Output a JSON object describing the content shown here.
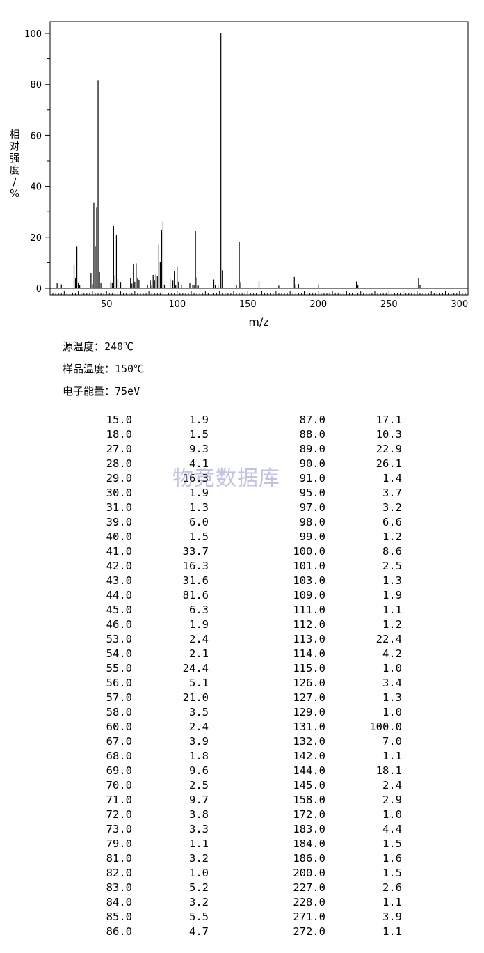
{
  "chart_data": {
    "type": "bar",
    "xlabel": "m/z",
    "ylabel": "相对强度/%",
    "xlim": [
      10,
      306
    ],
    "ylim": [
      0,
      105
    ],
    "x_ticks": [
      "50",
      "100",
      "150",
      "200",
      "250",
      "300"
    ],
    "y_ticks": [
      "0",
      "20",
      "40",
      "60",
      "80",
      "100"
    ],
    "grid": false,
    "peaks": [
      [
        15,
        1.9
      ],
      [
        18,
        1.5
      ],
      [
        27,
        9.3
      ],
      [
        28,
        4.1
      ],
      [
        29,
        16.3
      ],
      [
        30,
        1.9
      ],
      [
        31,
        1.3
      ],
      [
        39,
        6.0
      ],
      [
        40,
        1.5
      ],
      [
        41,
        33.7
      ],
      [
        42,
        16.3
      ],
      [
        43,
        31.6
      ],
      [
        44,
        81.6
      ],
      [
        45,
        6.3
      ],
      [
        46,
        1.9
      ],
      [
        53,
        2.4
      ],
      [
        54,
        2.1
      ],
      [
        55,
        24.4
      ],
      [
        56,
        5.1
      ],
      [
        57,
        21.0
      ],
      [
        58,
        3.5
      ],
      [
        60,
        2.4
      ],
      [
        67,
        3.9
      ],
      [
        68,
        1.8
      ],
      [
        69,
        9.6
      ],
      [
        70,
        2.5
      ],
      [
        71,
        9.7
      ],
      [
        72,
        3.8
      ],
      [
        73,
        3.3
      ],
      [
        79,
        1.1
      ],
      [
        81,
        3.2
      ],
      [
        82,
        1.0
      ],
      [
        83,
        5.2
      ],
      [
        84,
        3.2
      ],
      [
        85,
        5.5
      ],
      [
        86,
        4.7
      ],
      [
        87,
        17.1
      ],
      [
        88,
        10.3
      ],
      [
        89,
        22.9
      ],
      [
        90,
        26.1
      ],
      [
        91,
        1.4
      ],
      [
        95,
        3.7
      ],
      [
        97,
        3.2
      ],
      [
        98,
        6.6
      ],
      [
        99,
        1.2
      ],
      [
        100,
        8.6
      ],
      [
        101,
        2.5
      ],
      [
        103,
        1.3
      ],
      [
        109,
        1.9
      ],
      [
        111,
        1.1
      ],
      [
        112,
        1.2
      ],
      [
        113,
        22.4
      ],
      [
        114,
        4.2
      ],
      [
        115,
        1.0
      ],
      [
        126,
        3.4
      ],
      [
        127,
        1.3
      ],
      [
        129,
        1.0
      ],
      [
        131,
        100.0
      ],
      [
        132,
        7.0
      ],
      [
        142,
        1.1
      ],
      [
        144,
        18.1
      ],
      [
        145,
        2.4
      ],
      [
        158,
        2.9
      ],
      [
        172,
        1.0
      ],
      [
        183,
        4.4
      ],
      [
        184,
        1.5
      ],
      [
        186,
        1.6
      ],
      [
        200,
        1.5
      ],
      [
        227,
        2.6
      ],
      [
        228,
        1.1
      ],
      [
        271,
        3.9
      ],
      [
        272,
        1.1
      ]
    ]
  },
  "conditions": {
    "source_temp": "源温度：240℃",
    "sample_temp": "样品温度：150℃",
    "electron_energy": "电子能量：75eV"
  },
  "table": {
    "left": [
      [
        "15.0",
        "1.9"
      ],
      [
        "18.0",
        "1.5"
      ],
      [
        "27.0",
        "9.3"
      ],
      [
        "28.0",
        "4.1"
      ],
      [
        "29.0",
        "16.3"
      ],
      [
        "30.0",
        "1.9"
      ],
      [
        "31.0",
        "1.3"
      ],
      [
        "39.0",
        "6.0"
      ],
      [
        "40.0",
        "1.5"
      ],
      [
        "41.0",
        "33.7"
      ],
      [
        "42.0",
        "16.3"
      ],
      [
        "43.0",
        "31.6"
      ],
      [
        "44.0",
        "81.6"
      ],
      [
        "45.0",
        "6.3"
      ],
      [
        "46.0",
        "1.9"
      ],
      [
        "53.0",
        "2.4"
      ],
      [
        "54.0",
        "2.1"
      ],
      [
        "55.0",
        "24.4"
      ],
      [
        "56.0",
        "5.1"
      ],
      [
        "57.0",
        "21.0"
      ],
      [
        "58.0",
        "3.5"
      ],
      [
        "60.0",
        "2.4"
      ],
      [
        "67.0",
        "3.9"
      ],
      [
        "68.0",
        "1.8"
      ],
      [
        "69.0",
        "9.6"
      ],
      [
        "70.0",
        "2.5"
      ],
      [
        "71.0",
        "9.7"
      ],
      [
        "72.0",
        "3.8"
      ],
      [
        "73.0",
        "3.3"
      ],
      [
        "79.0",
        "1.1"
      ],
      [
        "81.0",
        "3.2"
      ],
      [
        "82.0",
        "1.0"
      ],
      [
        "83.0",
        "5.2"
      ],
      [
        "84.0",
        "3.2"
      ],
      [
        "85.0",
        "5.5"
      ],
      [
        "86.0",
        "4.7"
      ]
    ],
    "right": [
      [
        "87.0",
        "17.1"
      ],
      [
        "88.0",
        "10.3"
      ],
      [
        "89.0",
        "22.9"
      ],
      [
        "90.0",
        "26.1"
      ],
      [
        "91.0",
        "1.4"
      ],
      [
        "95.0",
        "3.7"
      ],
      [
        "97.0",
        "3.2"
      ],
      [
        "98.0",
        "6.6"
      ],
      [
        "99.0",
        "1.2"
      ],
      [
        "100.0",
        "8.6"
      ],
      [
        "101.0",
        "2.5"
      ],
      [
        "103.0",
        "1.3"
      ],
      [
        "109.0",
        "1.9"
      ],
      [
        "111.0",
        "1.1"
      ],
      [
        "112.0",
        "1.2"
      ],
      [
        "113.0",
        "22.4"
      ],
      [
        "114.0",
        "4.2"
      ],
      [
        "115.0",
        "1.0"
      ],
      [
        "126.0",
        "3.4"
      ],
      [
        "127.0",
        "1.3"
      ],
      [
        "129.0",
        "1.0"
      ],
      [
        "131.0",
        "100.0"
      ],
      [
        "132.0",
        "7.0"
      ],
      [
        "142.0",
        "1.1"
      ],
      [
        "144.0",
        "18.1"
      ],
      [
        "145.0",
        "2.4"
      ],
      [
        "158.0",
        "2.9"
      ],
      [
        "172.0",
        "1.0"
      ],
      [
        "183.0",
        "4.4"
      ],
      [
        "184.0",
        "1.5"
      ],
      [
        "186.0",
        "1.6"
      ],
      [
        "200.0",
        "1.5"
      ],
      [
        "227.0",
        "2.6"
      ],
      [
        "228.0",
        "1.1"
      ],
      [
        "271.0",
        "3.9"
      ],
      [
        "272.0",
        "1.1"
      ]
    ]
  },
  "watermark": "物竞数据库"
}
